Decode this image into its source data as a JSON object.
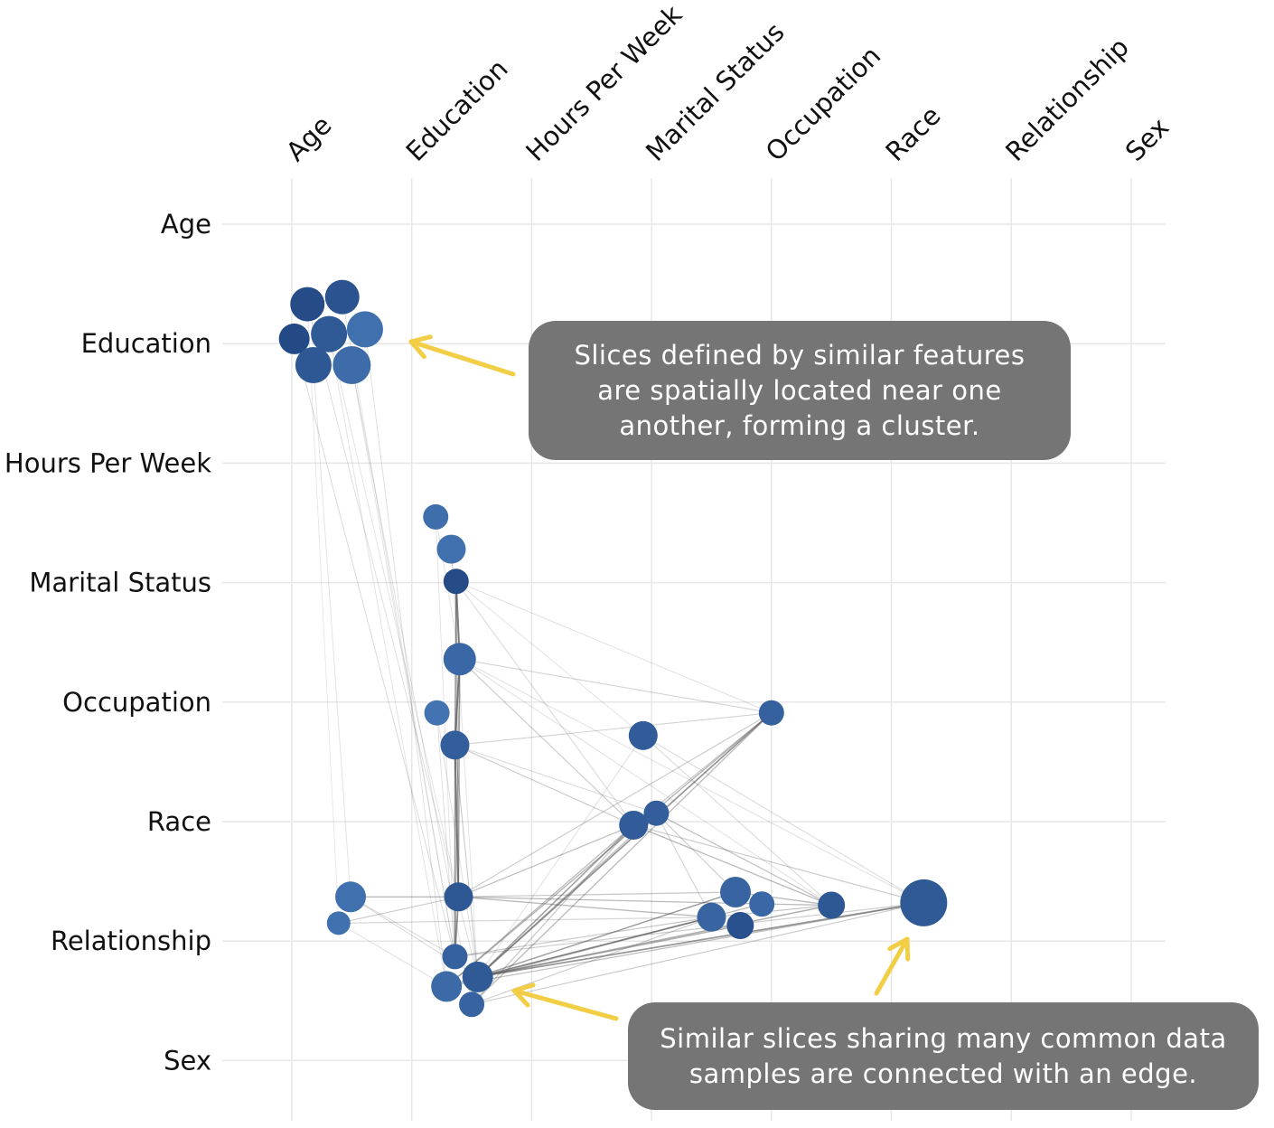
{
  "chart_data": {
    "type": "scatter",
    "x_axis": {
      "labels": [
        "Age",
        "Education",
        "Hours Per Week",
        "Marital Status",
        "Occupation",
        "Race",
        "Relationship",
        "Sex"
      ],
      "position": "top",
      "label_rotation": -45
    },
    "y_axis": {
      "labels": [
        "Age",
        "Education",
        "Hours Per Week",
        "Marital Status",
        "Occupation",
        "Race",
        "Relationship",
        "Sex"
      ]
    },
    "grid": true,
    "node_color_range": [
      "#244a86",
      "#4677b5"
    ],
    "edge_color": "#555555",
    "nodes": [
      {
        "x": 0.13,
        "y": 0.67,
        "r": 19,
        "c": 0.05
      },
      {
        "x": 0.42,
        "y": 0.61,
        "r": 19,
        "c": 0.2
      },
      {
        "x": 0.02,
        "y": 0.96,
        "r": 17,
        "c": 0.0
      },
      {
        "x": 0.31,
        "y": 0.92,
        "r": 20,
        "c": 0.35
      },
      {
        "x": 0.61,
        "y": 0.88,
        "r": 20,
        "c": 0.85
      },
      {
        "x": 0.18,
        "y": 1.18,
        "r": 20,
        "c": 0.3
      },
      {
        "x": 0.5,
        "y": 1.18,
        "r": 21,
        "c": 0.75
      },
      {
        "x": 1.2,
        "y": 2.45,
        "r": 14,
        "c": 0.8
      },
      {
        "x": 1.33,
        "y": 2.72,
        "r": 16,
        "c": 0.85
      },
      {
        "x": 1.37,
        "y": 2.99,
        "r": 14,
        "c": 0.05
      },
      {
        "x": 1.4,
        "y": 3.64,
        "r": 18,
        "c": 0.65
      },
      {
        "x": 1.21,
        "y": 4.09,
        "r": 14,
        "c": 0.9
      },
      {
        "x": 1.36,
        "y": 4.36,
        "r": 16,
        "c": 0.45
      },
      {
        "x": 4.0,
        "y": 4.09,
        "r": 14,
        "c": 0.5
      },
      {
        "x": 2.93,
        "y": 4.28,
        "r": 16,
        "c": 0.4
      },
      {
        "x": 3.04,
        "y": 4.93,
        "r": 14,
        "c": 0.45
      },
      {
        "x": 2.85,
        "y": 5.03,
        "r": 16,
        "c": 0.4
      },
      {
        "x": 0.49,
        "y": 5.63,
        "r": 17,
        "c": 0.85
      },
      {
        "x": 0.39,
        "y": 5.85,
        "r": 13,
        "c": 0.85
      },
      {
        "x": 1.39,
        "y": 5.63,
        "r": 16,
        "c": 0.3
      },
      {
        "x": 3.7,
        "y": 5.59,
        "r": 17,
        "c": 0.6
      },
      {
        "x": 3.92,
        "y": 5.69,
        "r": 14,
        "c": 0.65
      },
      {
        "x": 3.5,
        "y": 5.8,
        "r": 16,
        "c": 0.6
      },
      {
        "x": 3.74,
        "y": 5.87,
        "r": 15,
        "c": 0.15
      },
      {
        "x": 4.5,
        "y": 5.7,
        "r": 15,
        "c": 0.3
      },
      {
        "x": 5.27,
        "y": 5.68,
        "r": 26,
        "c": 0.35
      },
      {
        "x": 1.36,
        "y": 6.13,
        "r": 14,
        "c": 0.5
      },
      {
        "x": 1.29,
        "y": 6.38,
        "r": 17,
        "c": 0.7
      },
      {
        "x": 1.55,
        "y": 6.3,
        "r": 17,
        "c": 0.35
      },
      {
        "x": 1.5,
        "y": 6.53,
        "r": 14,
        "c": 0.55
      }
    ],
    "edges": [
      [
        9,
        10,
        0.95
      ],
      [
        10,
        12,
        0.95
      ],
      [
        12,
        19,
        0.9
      ],
      [
        19,
        26,
        0.8
      ],
      [
        9,
        12,
        0.55
      ],
      [
        10,
        19,
        0.55
      ],
      [
        12,
        26,
        0.55
      ],
      [
        9,
        19,
        0.4
      ],
      [
        10,
        26,
        0.4
      ],
      [
        9,
        26,
        0.3
      ],
      [
        13,
        28,
        0.75
      ],
      [
        13,
        27,
        0.5
      ],
      [
        13,
        29,
        0.45
      ],
      [
        13,
        16,
        0.35
      ],
      [
        16,
        28,
        0.65
      ],
      [
        16,
        27,
        0.45
      ],
      [
        16,
        29,
        0.35
      ],
      [
        15,
        28,
        0.45
      ],
      [
        15,
        24,
        0.4
      ],
      [
        16,
        24,
        0.45
      ],
      [
        16,
        25,
        0.3
      ],
      [
        19,
        22,
        0.45
      ],
      [
        19,
        20,
        0.35
      ],
      [
        19,
        21,
        0.3
      ],
      [
        19,
        16,
        0.4
      ],
      [
        19,
        13,
        0.3
      ],
      [
        19,
        24,
        0.2
      ],
      [
        28,
        25,
        0.75
      ],
      [
        28,
        22,
        0.65
      ],
      [
        28,
        20,
        0.5
      ],
      [
        28,
        23,
        0.55
      ],
      [
        28,
        21,
        0.45
      ],
      [
        28,
        24,
        0.55
      ],
      [
        27,
        22,
        0.4
      ],
      [
        27,
        25,
        0.4
      ],
      [
        27,
        20,
        0.3
      ],
      [
        29,
        25,
        0.3
      ],
      [
        29,
        22,
        0.3
      ],
      [
        26,
        22,
        0.35
      ],
      [
        26,
        25,
        0.3
      ],
      [
        17,
        19,
        0.45
      ],
      [
        18,
        19,
        0.3
      ],
      [
        18,
        22,
        0.25
      ],
      [
        17,
        26,
        0.2
      ],
      [
        17,
        28,
        0.2
      ],
      [
        18,
        27,
        0.15
      ],
      [
        12,
        13,
        0.25
      ],
      [
        12,
        16,
        0.3
      ],
      [
        12,
        15,
        0.2
      ],
      [
        12,
        28,
        0.3
      ],
      [
        10,
        13,
        0.25
      ],
      [
        10,
        16,
        0.3
      ],
      [
        10,
        24,
        0.15
      ],
      [
        10,
        25,
        0.15
      ],
      [
        9,
        16,
        0.2
      ],
      [
        9,
        13,
        0.15
      ],
      [
        9,
        14,
        0.12
      ],
      [
        20,
        24,
        0.45
      ],
      [
        22,
        24,
        0.35
      ],
      [
        21,
        24,
        0.3
      ],
      [
        15,
        20,
        0.3
      ],
      [
        15,
        22,
        0.25
      ],
      [
        14,
        25,
        0.2
      ],
      [
        14,
        24,
        0.2
      ],
      [
        14,
        28,
        0.15
      ],
      [
        2,
        26,
        0.18
      ],
      [
        0,
        28,
        0.15
      ],
      [
        4,
        27,
        0.15
      ],
      [
        6,
        29,
        0.15
      ],
      [
        5,
        17,
        0.12
      ],
      [
        1,
        26,
        0.12
      ],
      [
        3,
        19,
        0.12
      ],
      [
        3,
        27,
        0.12
      ],
      [
        6,
        26,
        0.12
      ],
      [
        0,
        18,
        0.1
      ],
      [
        11,
        28,
        0.15
      ],
      [
        11,
        26,
        0.15
      ],
      [
        7,
        26,
        0.12
      ],
      [
        8,
        28,
        0.12
      ],
      [
        7,
        10,
        0.12
      ],
      [
        8,
        10,
        0.15
      ]
    ]
  },
  "callouts": {
    "cluster": [
      "Slices defined by similar features",
      "are spatially located near one",
      "another, forming a cluster."
    ],
    "edge": [
      "Similar slices sharing many common data",
      "samples are connected with an edge."
    ]
  },
  "arrow_color": "#f2cd46"
}
